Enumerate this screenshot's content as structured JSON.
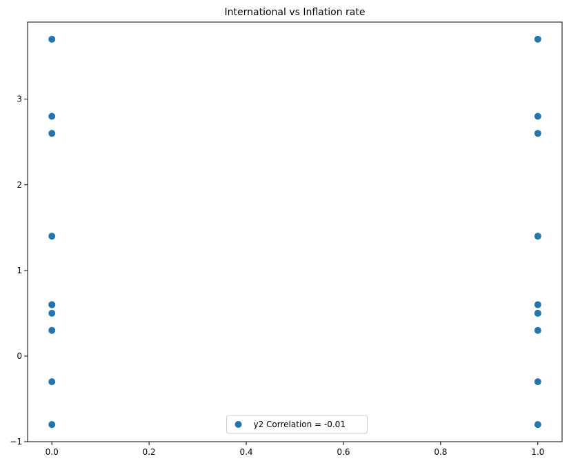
{
  "chart_data": {
    "type": "scatter",
    "title": "International vs Inflation rate",
    "xlabel": "",
    "ylabel": "",
    "xlim": [
      -0.05,
      1.05
    ],
    "ylim": [
      -1.0,
      3.9
    ],
    "x_ticks": [
      0.0,
      0.2,
      0.4,
      0.6,
      0.8,
      1.0
    ],
    "x_tick_labels": [
      "0.0",
      "0.2",
      "0.4",
      "0.6",
      "0.8",
      "1.0"
    ],
    "y_ticks": [
      -1,
      0,
      1,
      2,
      3
    ],
    "y_tick_labels": [
      "−1",
      "0",
      "1",
      "2",
      "3"
    ],
    "grid": false,
    "legend_position": "lower center",
    "color": "#1f77b4",
    "series": [
      {
        "name": "y2 Correlation = -0.01",
        "x": [
          0,
          0,
          0,
          0,
          0,
          0,
          0,
          0,
          0,
          0,
          1,
          1,
          1,
          1,
          1,
          1,
          1,
          1,
          1,
          1
        ],
        "y": [
          3.7,
          2.8,
          2.6,
          1.4,
          0.6,
          0.5,
          0.3,
          -0.3,
          -0.8,
          0.6,
          3.7,
          2.8,
          2.6,
          1.4,
          0.6,
          0.5,
          0.3,
          -0.3,
          -0.8,
          0.5
        ]
      }
    ]
  }
}
